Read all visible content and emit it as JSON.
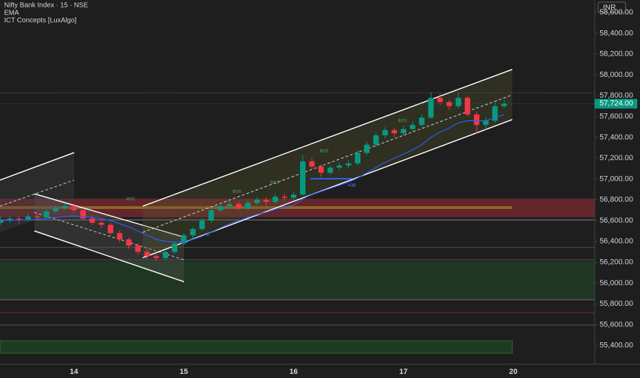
{
  "chart_data": {
    "type": "candlestick",
    "title": "Nifty Bank Index · 15 · NSE",
    "indicators": [
      "ICT Concepts [LuxAlgo]"
    ],
    "currency": "INR",
    "categories": [
      null,
      null,
      null,
      null,
      null,
      null,
      null,
      null,
      "14",
      null,
      null,
      null,
      null,
      null,
      null,
      null,
      null,
      null,
      null,
      null,
      "15",
      null,
      null,
      null,
      null,
      null,
      null,
      null,
      null,
      null,
      null,
      null,
      "16",
      null,
      null,
      null,
      null,
      null,
      null,
      null,
      null,
      null,
      null,
      null,
      "17",
      null,
      null,
      null,
      null,
      null,
      null,
      null,
      null,
      null,
      null,
      null,
      "20"
    ],
    "open": [
      56580,
      56600,
      56620,
      56610,
      56640,
      56630,
      56690,
      56720,
      56740,
      56700,
      56620,
      56580,
      56560,
      56480,
      56420,
      56360,
      56300,
      56260,
      56240,
      56300,
      56380,
      56460,
      56520,
      56600,
      56700,
      56740,
      56760,
      56720,
      56770,
      56800,
      56780,
      56830,
      56820,
      56850,
      57170,
      57120,
      57060,
      57110,
      57130,
      57150,
      57250,
      57330,
      57420,
      57470,
      57440,
      57480,
      57520,
      57590,
      57780,
      57740,
      57700,
      57780,
      57620,
      57520,
      57560,
      57700,
      null
    ],
    "high": [
      56640,
      56650,
      56640,
      56670,
      56660,
      56710,
      56750,
      56770,
      56760,
      56720,
      56650,
      56620,
      56580,
      56510,
      56440,
      56380,
      56330,
      56290,
      56320,
      56400,
      56480,
      56540,
      56620,
      56720,
      56770,
      56800,
      56790,
      56800,
      56830,
      56820,
      56860,
      56860,
      56880,
      57230,
      57200,
      57140,
      57130,
      57160,
      57180,
      57280,
      57360,
      57450,
      57500,
      57490,
      57510,
      57550,
      57620,
      57830,
      57820,
      57760,
      57830,
      57800,
      57650,
      57590,
      57740,
      57760,
      null
    ],
    "low": [
      56560,
      56580,
      56570,
      56590,
      56600,
      56620,
      56670,
      56700,
      56680,
      56600,
      56560,
      56530,
      56460,
      56390,
      56330,
      56270,
      56230,
      56210,
      56220,
      56280,
      56360,
      56420,
      56500,
      56580,
      56680,
      56710,
      56700,
      56700,
      56750,
      56740,
      56760,
      56790,
      56800,
      56840,
      57090,
      57020,
      57040,
      57080,
      57100,
      57130,
      57230,
      57310,
      57390,
      57400,
      57420,
      57460,
      57500,
      57580,
      57710,
      57660,
      57680,
      57600,
      57440,
      57470,
      57540,
      57680,
      null
    ],
    "close": [
      56600,
      56620,
      56610,
      56640,
      56630,
      56690,
      56720,
      56740,
      56700,
      56620,
      56580,
      56560,
      56480,
      56420,
      56360,
      56300,
      56260,
      56240,
      56300,
      56380,
      56460,
      56520,
      56600,
      56700,
      56740,
      56760,
      56720,
      56770,
      56800,
      56780,
      56830,
      56820,
      56850,
      57170,
      57120,
      57060,
      57110,
      57130,
      57150,
      57250,
      57330,
      57420,
      57470,
      57440,
      57480,
      57520,
      57590,
      57780,
      57740,
      57700,
      57780,
      57620,
      57520,
      57560,
      57700,
      57724,
      null
    ],
    "up_color": "#089981",
    "down_color": "#f23645",
    "ema": {
      "name": "EMA",
      "color": "#2962ff",
      "values": [
        56600,
        56605,
        56607,
        56610,
        56613,
        56620,
        56630,
        56640,
        56645,
        56640,
        56630,
        56620,
        56600,
        56570,
        56540,
        56500,
        56460,
        56420,
        56400,
        56395,
        56400,
        56420,
        56450,
        56490,
        56530,
        56570,
        56600,
        56630,
        56660,
        56680,
        56710,
        56730,
        56750,
        56810,
        56850,
        56880,
        56910,
        56940,
        56970,
        57010,
        57060,
        57110,
        57160,
        57200,
        57240,
        57280,
        57330,
        57400,
        57450,
        57490,
        57540,
        57560,
        57560,
        57560,
        57590,
        57620,
        null
      ]
    },
    "last_price": {
      "value": 57724,
      "label": "57,724.00"
    },
    "annotations": [
      "MSS",
      "BOS",
      "BOS",
      "BOS",
      "BOS",
      "+OB",
      "VI"
    ],
    "ylim": [
      55220,
      58720
    ],
    "yticks": [
      {
        "value": 55400,
        "label": "55,400.00"
      },
      {
        "value": 55600,
        "label": "55,600.00"
      },
      {
        "value": 55800,
        "label": "55,800.00"
      },
      {
        "value": 56000,
        "label": "56,000.00"
      },
      {
        "value": 56200,
        "label": "56,200.00"
      },
      {
        "value": 56400,
        "label": "56,400.00"
      },
      {
        "value": 56600,
        "label": "56,600.00"
      },
      {
        "value": 56800,
        "label": "56,800.00"
      },
      {
        "value": 57000,
        "label": "57,000.00"
      },
      {
        "value": 57200,
        "label": "57,200.00"
      },
      {
        "value": 57400,
        "label": "57,400.00"
      },
      {
        "value": 57600,
        "label": "57,600.00"
      },
      {
        "value": 57800,
        "label": "57,800.00"
      },
      {
        "value": 58000,
        "label": "58,000.00"
      },
      {
        "value": 58200,
        "label": "58,200.00"
      },
      {
        "value": 58400,
        "label": "58,400.00"
      },
      {
        "value": 58600,
        "label": "58,600.00"
      }
    ],
    "grid": false
  }
}
